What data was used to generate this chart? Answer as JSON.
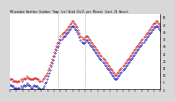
{
  "title": "Milwaukee Weather Outdoor Temp (vs) Wind Chill per Minute (Last 24 Hours)",
  "bg_color": "#d8d8d8",
  "plot_bg_color": "#ffffff",
  "y_min": 0,
  "y_max": 52,
  "y_ticks": [
    0,
    5,
    10,
    15,
    20,
    25,
    30,
    35,
    40,
    45,
    50
  ],
  "outdoor_temp_color": "#cc0000",
  "wind_chill_color": "#0000bb",
  "vline_color": "#888888",
  "vline_positions": [
    0.32,
    0.5
  ],
  "outdoor_temp": [
    7,
    7,
    7,
    6,
    6,
    6,
    6,
    5,
    6,
    6,
    7,
    6,
    7,
    8,
    7,
    8,
    9,
    8,
    8,
    7,
    7,
    7,
    7,
    8,
    8,
    8,
    7,
    7,
    6,
    6,
    6,
    7,
    8,
    9,
    10,
    11,
    13,
    15,
    17,
    19,
    21,
    23,
    26,
    28,
    30,
    32,
    33,
    35,
    37,
    38,
    39,
    40,
    40,
    41,
    42,
    43,
    44,
    45,
    46,
    47,
    47,
    46,
    45,
    44,
    43,
    41,
    39,
    37,
    36,
    35,
    35,
    36,
    37,
    37,
    36,
    35,
    34,
    33,
    32,
    31,
    30,
    29,
    28,
    27,
    26,
    25,
    24,
    23,
    22,
    21,
    20,
    19,
    18,
    17,
    16,
    15,
    14,
    13,
    12,
    11,
    10,
    10,
    11,
    12,
    13,
    14,
    15,
    16,
    17,
    18,
    19,
    20,
    21,
    22,
    23,
    24,
    25,
    26,
    27,
    28,
    29,
    30,
    31,
    32,
    33,
    34,
    35,
    36,
    37,
    38,
    39,
    40,
    41,
    42,
    43,
    44,
    45,
    46,
    46,
    47,
    47,
    46,
    45,
    44
  ],
  "wind_chill": [
    3,
    3,
    2,
    2,
    1,
    1,
    1,
    0,
    1,
    1,
    2,
    1,
    2,
    3,
    2,
    3,
    4,
    3,
    3,
    2,
    1,
    1,
    2,
    3,
    2,
    2,
    2,
    1,
    1,
    0,
    0,
    1,
    2,
    4,
    5,
    7,
    9,
    11,
    13,
    16,
    18,
    20,
    23,
    25,
    27,
    29,
    30,
    32,
    34,
    35,
    36,
    37,
    37,
    38,
    39,
    40,
    41,
    42,
    43,
    44,
    44,
    43,
    42,
    41,
    40,
    38,
    36,
    34,
    33,
    32,
    32,
    33,
    34,
    34,
    33,
    32,
    31,
    30,
    29,
    28,
    27,
    26,
    25,
    24,
    23,
    22,
    21,
    20,
    19,
    18,
    17,
    16,
    15,
    14,
    13,
    12,
    11,
    10,
    9,
    8,
    7,
    7,
    8,
    9,
    10,
    11,
    12,
    13,
    14,
    15,
    16,
    17,
    18,
    19,
    20,
    21,
    22,
    23,
    24,
    25,
    26,
    27,
    28,
    29,
    30,
    31,
    32,
    33,
    34,
    35,
    36,
    37,
    38,
    39,
    40,
    41,
    42,
    43,
    43,
    44,
    44,
    43,
    42,
    41
  ]
}
